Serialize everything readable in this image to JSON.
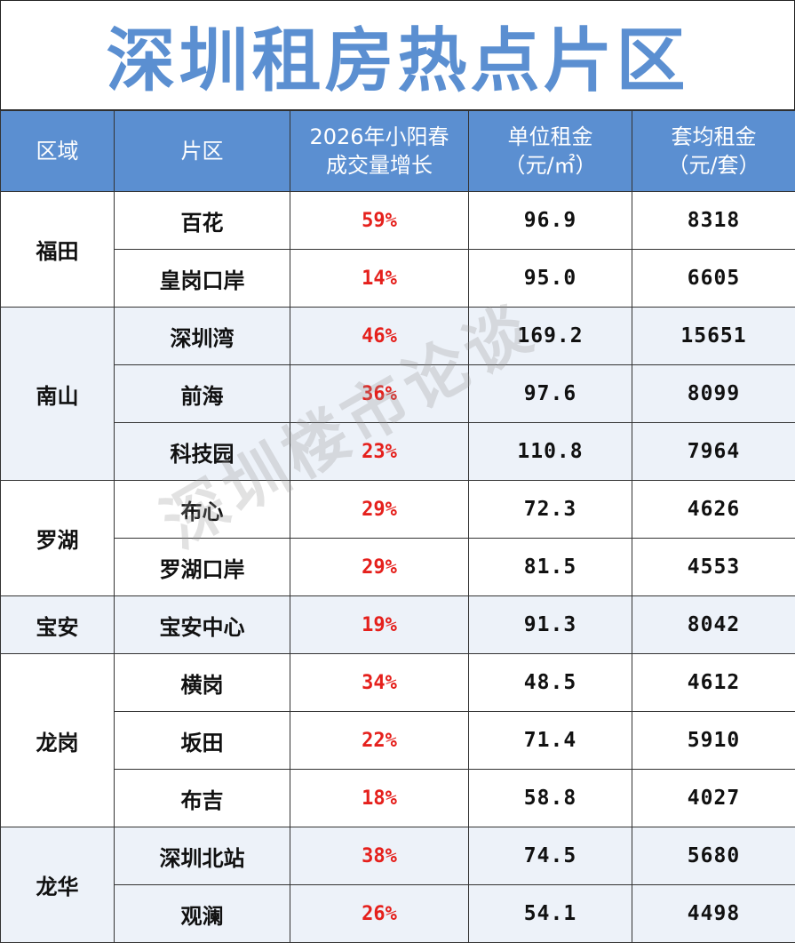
{
  "title": "深圳租房热点片区",
  "watermark": "深圳楼市论谈",
  "headers": {
    "district": "区域",
    "area": "片区",
    "growth_line1": "2026年小阳春",
    "growth_line2": "成交量增长",
    "unit_rent_line1": "单位租金",
    "unit_rent_line2": "（元/㎡）",
    "avg_rent_line1": "套均租金",
    "avg_rent_line2": "（元/套）"
  },
  "groups": [
    {
      "district": "福田",
      "rows": [
        {
          "area": "百花",
          "growth": "59%",
          "unit_rent": "96.9",
          "avg_rent": "8318"
        },
        {
          "area": "皇岗口岸",
          "growth": "14%",
          "unit_rent": "95.0",
          "avg_rent": "6605"
        }
      ]
    },
    {
      "district": "南山",
      "rows": [
        {
          "area": "深圳湾",
          "growth": "46%",
          "unit_rent": "169.2",
          "avg_rent": "15651"
        },
        {
          "area": "前海",
          "growth": "36%",
          "unit_rent": "97.6",
          "avg_rent": "8099"
        },
        {
          "area": "科技园",
          "growth": "23%",
          "unit_rent": "110.8",
          "avg_rent": "7964"
        }
      ]
    },
    {
      "district": "罗湖",
      "rows": [
        {
          "area": "布心",
          "growth": "29%",
          "unit_rent": "72.3",
          "avg_rent": "4626"
        },
        {
          "area": "罗湖口岸",
          "growth": "29%",
          "unit_rent": "81.5",
          "avg_rent": "4553"
        }
      ]
    },
    {
      "district": "宝安",
      "rows": [
        {
          "area": "宝安中心",
          "growth": "19%",
          "unit_rent": "91.3",
          "avg_rent": "8042"
        }
      ]
    },
    {
      "district": "龙岗",
      "rows": [
        {
          "area": "横岗",
          "growth": "34%",
          "unit_rent": "48.5",
          "avg_rent": "4612"
        },
        {
          "area": "坂田",
          "growth": "22%",
          "unit_rent": "71.4",
          "avg_rent": "5910"
        },
        {
          "area": "布吉",
          "growth": "18%",
          "unit_rent": "58.8",
          "avg_rent": "4027"
        }
      ]
    },
    {
      "district": "龙华",
      "rows": [
        {
          "area": "深圳北站",
          "growth": "38%",
          "unit_rent": "74.5",
          "avg_rent": "5680"
        },
        {
          "area": "观澜",
          "growth": "26%",
          "unit_rent": "54.1",
          "avg_rent": "4498"
        }
      ]
    }
  ]
}
